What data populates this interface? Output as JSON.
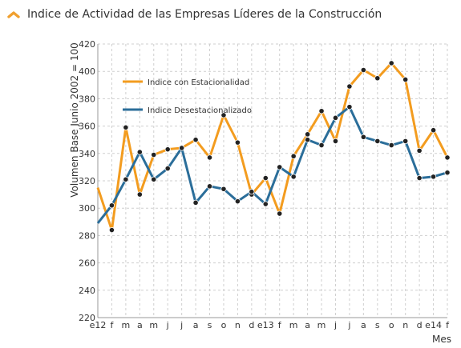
{
  "header": {
    "title": "Indice de Actividad de las Empresas Líderes de la Construcción",
    "icon": "chevron-up-icon",
    "icon_color": "#f0a030"
  },
  "chart_data": {
    "type": "line",
    "title": "Indice de Actividad de las Empresas Líderes de la Construcción",
    "xlabel": "Mes",
    "ylabel": "Volumen Base Junio 2002 = 100",
    "ylim": [
      220,
      420
    ],
    "yticks": [
      220,
      240,
      260,
      280,
      300,
      320,
      340,
      360,
      380,
      400,
      420
    ],
    "grid": true,
    "legend_position": "top-left",
    "categories": [
      "e12",
      "f",
      "m",
      "a",
      "m",
      "j",
      "j",
      "a",
      "s",
      "o",
      "n",
      "d",
      "e13",
      "f",
      "m",
      "a",
      "m",
      "j",
      "j",
      "a",
      "s",
      "o",
      "n",
      "d",
      "e14",
      "f"
    ],
    "series": [
      {
        "name": "Indice con Estacionalidad",
        "color": "#f39c1f",
        "values": [
          315,
          284,
          359,
          310,
          339,
          343,
          344,
          350,
          337,
          368,
          348,
          310,
          322,
          296,
          338,
          354,
          371,
          349,
          389,
          401,
          395,
          406,
          394,
          342,
          357,
          337
        ]
      },
      {
        "name": "Indice Desestacionalizado",
        "color": "#2b6e9a",
        "values": [
          289,
          302,
          321,
          341,
          321,
          329,
          344,
          304,
          316,
          314,
          305,
          312,
          303,
          330,
          323,
          350,
          346,
          366,
          374,
          352,
          349,
          346,
          349,
          322,
          323,
          326
        ]
      }
    ]
  }
}
